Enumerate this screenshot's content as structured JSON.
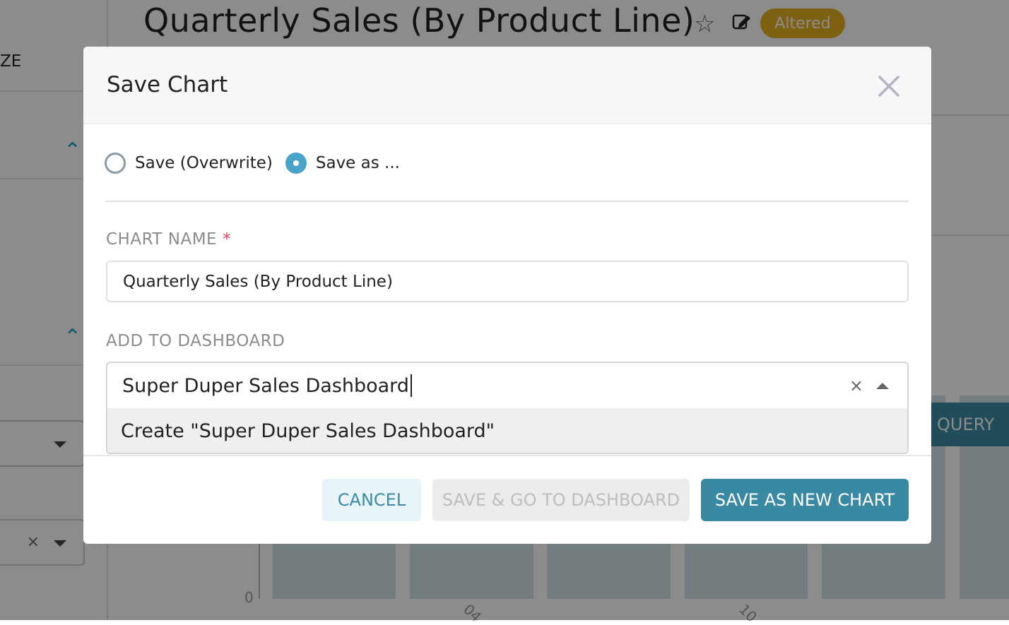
{
  "background": {
    "chart_title": "Quarterly Sales (By Product Line)",
    "status_badge": "Altered",
    "sidebar_partial_label": "ZE",
    "run_query_partial": "QUERY",
    "y_axis_zero": "0",
    "x_tick_1": "04",
    "x_tick_2": "10"
  },
  "modal": {
    "title": "Save Chart",
    "radio_overwrite": "Save (Overwrite)",
    "radio_save_as": "Save as ...",
    "selected_mode": "save_as",
    "chart_name_label": "CHART NAME",
    "required_mark": "*",
    "chart_name_value": "Quarterly Sales (By Product Line)",
    "dashboard_label": "ADD TO DASHBOARD",
    "dashboard_value": "Super Duper Sales Dashboard",
    "dashboard_option": "Create \"Super Duper Sales Dashboard\"",
    "clear_symbol": "×",
    "buttons": {
      "cancel": "CANCEL",
      "save_go": "SAVE & GO TO DASHBOARD",
      "save_new": "SAVE AS NEW CHART"
    }
  },
  "colors": {
    "primary": "#3a89a3",
    "badge": "#e6b022",
    "radio_on": "#4aa3c9"
  }
}
